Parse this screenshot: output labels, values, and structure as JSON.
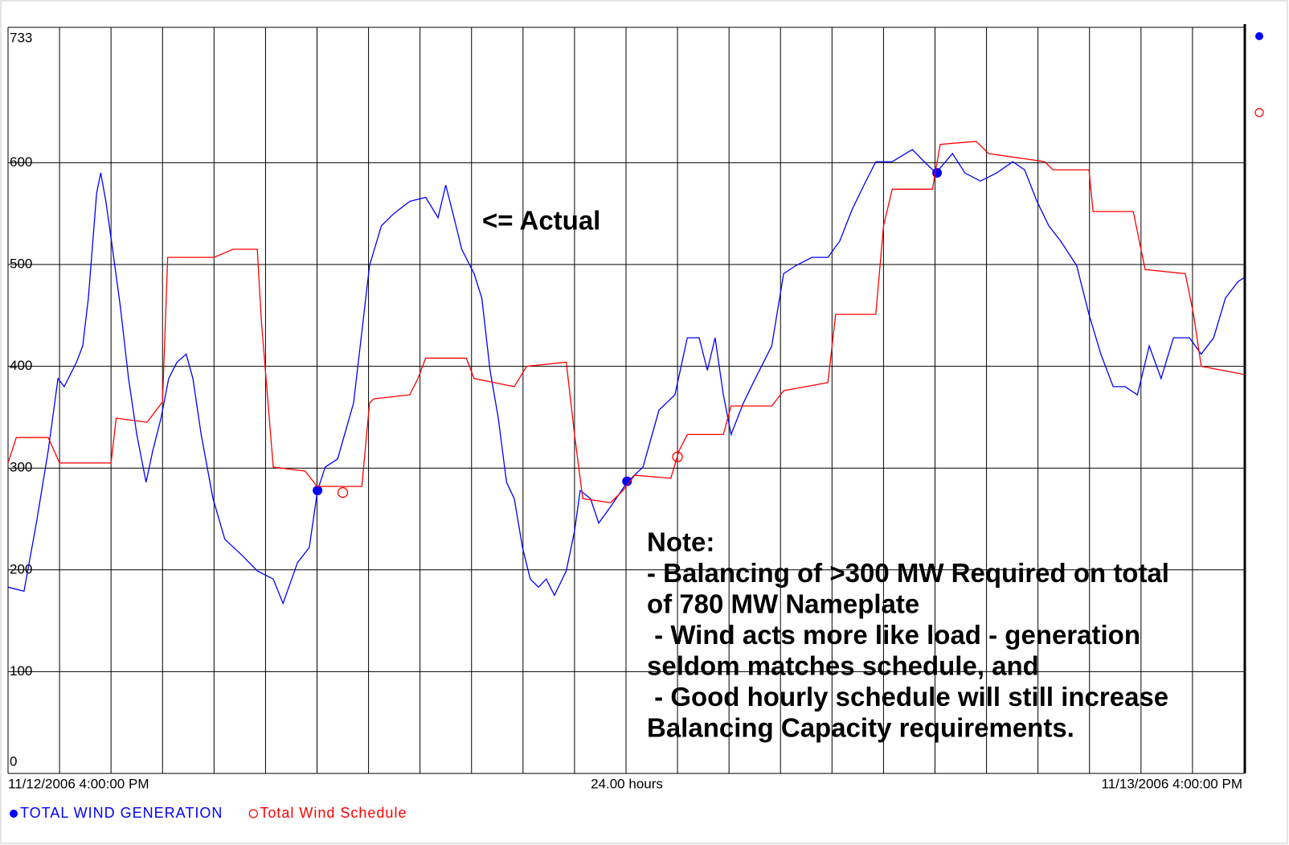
{
  "chart_data": {
    "type": "line",
    "annotation": "<= Actual",
    "note_lines": [
      "Note:",
      "- Balancing of >300 MW Required on total",
      "of 780 MW Nameplate",
      " - Wind acts more like load - generation",
      "seldom matches schedule, and",
      " - Good hourly schedule will still increase",
      "Balancing Capacity requirements."
    ],
    "x_start_label": "11/12/2006 4:00:00 PM",
    "x_span_label": "24.00 hours",
    "x_end_label": "11/13/2006 4:00:00 PM",
    "xlim": [
      0,
      24
    ],
    "xticks": [
      0,
      1,
      2,
      3,
      4,
      5,
      6,
      7,
      8,
      9,
      10,
      11,
      12,
      13,
      14,
      15,
      16,
      17,
      18,
      19,
      20,
      21,
      22,
      23,
      24
    ],
    "ylim": [
      0,
      733
    ],
    "yticks": [
      0,
      100,
      200,
      300,
      400,
      500,
      600,
      733
    ],
    "grid": true,
    "series": [
      {
        "name": "TOTAL WIND GENERATION",
        "color": "#0000ff",
        "marker": "filled",
        "x": [
          0,
          0.31,
          0.55,
          0.78,
          0.97,
          1.09,
          1.33,
          1.45,
          1.56,
          1.72,
          1.8,
          1.9,
          2.03,
          2.18,
          2.34,
          2.5,
          2.68,
          2.81,
          2.97,
          3.12,
          3.28,
          3.46,
          3.59,
          3.75,
          3.98,
          4.21,
          4.53,
          4.84,
          5.15,
          5.34,
          5.62,
          5.85,
          6.01,
          6.16,
          6.4,
          6.71,
          7.02,
          7.25,
          7.49,
          7.8,
          8.11,
          8.35,
          8.5,
          8.66,
          8.81,
          9.05,
          9.2,
          9.36,
          9.52,
          9.68,
          9.83,
          9.99,
          10.14,
          10.3,
          10.45,
          10.61,
          10.84,
          11.0,
          11.11,
          11.31,
          11.47,
          11.7,
          12.02,
          12.33,
          12.64,
          12.95,
          13.19,
          13.42,
          13.58,
          13.73,
          13.89,
          14.04,
          14.28,
          14.51,
          14.83,
          15.06,
          15.3,
          15.61,
          15.92,
          16.15,
          16.39,
          16.62,
          16.85,
          17.17,
          17.56,
          17.79,
          18.02,
          18.34,
          18.58,
          18.88,
          19.2,
          19.51,
          19.74,
          19.98,
          20.21,
          20.44,
          20.75,
          20.99,
          21.22,
          21.46,
          21.69,
          21.93,
          22.16,
          22.39,
          22.63,
          22.94,
          23.17,
          23.41,
          23.64,
          23.88,
          24.0
        ],
        "values": [
          183,
          179,
          246,
          317,
          388,
          380,
          404,
          420,
          467,
          570,
          590,
          562,
          515,
          459,
          388,
          333,
          286,
          317,
          349,
          388,
          404,
          412,
          388,
          333,
          270,
          230,
          215,
          199,
          191,
          167,
          207,
          222,
          278,
          301,
          309,
          364,
          499,
          538,
          550,
          562,
          566,
          546,
          578,
          546,
          515,
          491,
          467,
          396,
          349,
          286,
          270,
          222,
          191,
          183,
          191,
          175,
          199,
          238,
          278,
          270,
          246,
          262,
          286,
          301,
          357,
          372,
          428,
          428,
          396,
          428,
          372,
          333,
          364,
          388,
          420,
          491,
          499,
          507,
          507,
          523,
          554,
          578,
          601,
          601,
          613,
          601,
          590,
          609,
          590,
          582,
          590,
          601,
          593,
          562,
          538,
          523,
          499,
          451,
          412,
          380,
          380,
          372,
          420,
          388,
          428,
          428,
          412,
          428,
          467,
          483,
          487
        ],
        "marker_x": [
          6.01,
          12.02,
          18.04
        ],
        "marker_values": [
          278,
          287,
          590
        ]
      },
      {
        "name": "Total Wind Schedule",
        "color": "#ff0000",
        "marker": "open",
        "x": [
          0,
          0.16,
          0.78,
          1.0,
          2.0,
          2.1,
          2.7,
          3.0,
          3.1,
          4.0,
          4.37,
          4.84,
          4.92,
          5.15,
          5.77,
          6.0,
          6.87,
          7.02,
          7.1,
          7.8,
          7.96,
          8.11,
          8.9,
          9.05,
          9.83,
          10.07,
          10.84,
          11.0,
          11.16,
          11.7,
          11.94,
          12.17,
          12.87,
          13.03,
          13.19,
          13.89,
          14.04,
          14.83,
          15.06,
          15.92,
          16.07,
          16.85,
          17.0,
          17.17,
          17.95,
          18.1,
          18.8,
          19.04,
          20.13,
          20.29,
          20.99,
          21.07,
          21.85,
          22.08,
          22.86,
          23.02,
          23.17,
          24.0
        ],
        "values": [
          305,
          330,
          330,
          305,
          305,
          349,
          345,
          365,
          507,
          507,
          515,
          515,
          444,
          301,
          297,
          282,
          282,
          364,
          368,
          372,
          388,
          408,
          408,
          388,
          380,
          400,
          404,
          333,
          270,
          266,
          278,
          293,
          290,
          317,
          333,
          333,
          361,
          361,
          376,
          384,
          451,
          451,
          538,
          574,
          574,
          618,
          621,
          609,
          601,
          593,
          593,
          552,
          552,
          495,
          491,
          451,
          400,
          392
        ],
        "marker_x": [
          6.5,
          13.0
        ],
        "marker_values": [
          276,
          311
        ]
      }
    ]
  }
}
